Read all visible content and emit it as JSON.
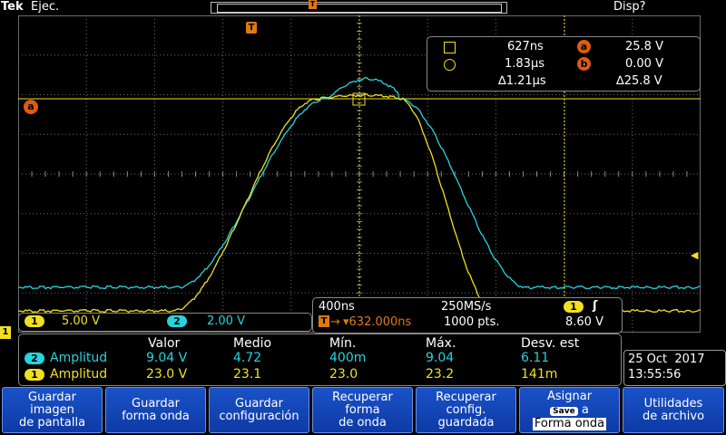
{
  "top": {
    "brand": "Tek",
    "mode": "Ejec.",
    "display": "Disp?"
  },
  "markers": {
    "trigger": "T",
    "cursor_a": "a",
    "cursor_b": "b",
    "channel1": "1"
  },
  "cursors": {
    "row1": {
      "time": "627ns",
      "label": "a",
      "value": "25.8 V"
    },
    "row2": {
      "time": "1.83µs",
      "label": "b",
      "value": "0.00 V"
    },
    "delta": {
      "time": "∆1.21µs",
      "value": "∆25.8 V"
    }
  },
  "vertical": {
    "ch1": {
      "badge": "1",
      "scale": "5.00 V"
    },
    "ch2": {
      "badge": "2",
      "scale": "2.00 V"
    }
  },
  "timebase": {
    "horizontal": "400ns",
    "sample_rate": "250MS/s",
    "trigger_badge": "1",
    "trigger_slope": "ʃ",
    "position": "▾632.000ns",
    "record_length": "1000 pts.",
    "trigger_level": "8.60 V"
  },
  "measurements": {
    "headers": [
      "Valor",
      "Medio",
      "Mín.",
      "Máx.",
      "Desv. est"
    ],
    "rows": [
      {
        "channel": "2",
        "name": "Amplitud",
        "values": [
          "9.04 V",
          "4.72",
          "400m",
          "9.04",
          "6.11"
        ],
        "color": "#25d4dc"
      },
      {
        "channel": "1",
        "name": "Amplitud",
        "values": [
          "23.0 V",
          "23.1",
          "23.0",
          "23.2",
          "141m"
        ],
        "color": "#f0e020"
      }
    ]
  },
  "datetime": {
    "date": "25 Oct  2017",
    "time": "13:55:56"
  },
  "buttons": [
    {
      "label": "Guardar\nimagen\nde pantalla"
    },
    {
      "label": "Guardar\nforma onda"
    },
    {
      "label": "Guardar\nconfiguración"
    },
    {
      "label": "Recuperar\nforma\nde onda"
    },
    {
      "label": "Recuperar\nconfig.\nguardada"
    },
    {
      "label_top": "Asignar",
      "chip": "Save",
      "label_a": "a",
      "label_bottom": "Forma onda"
    },
    {
      "label": "Utilidades\nde archivo"
    }
  ],
  "colors": {
    "ch1": "#f0e020",
    "ch2": "#25d4dc",
    "accent": "#e07a10",
    "button": "#1a4fc4"
  }
}
